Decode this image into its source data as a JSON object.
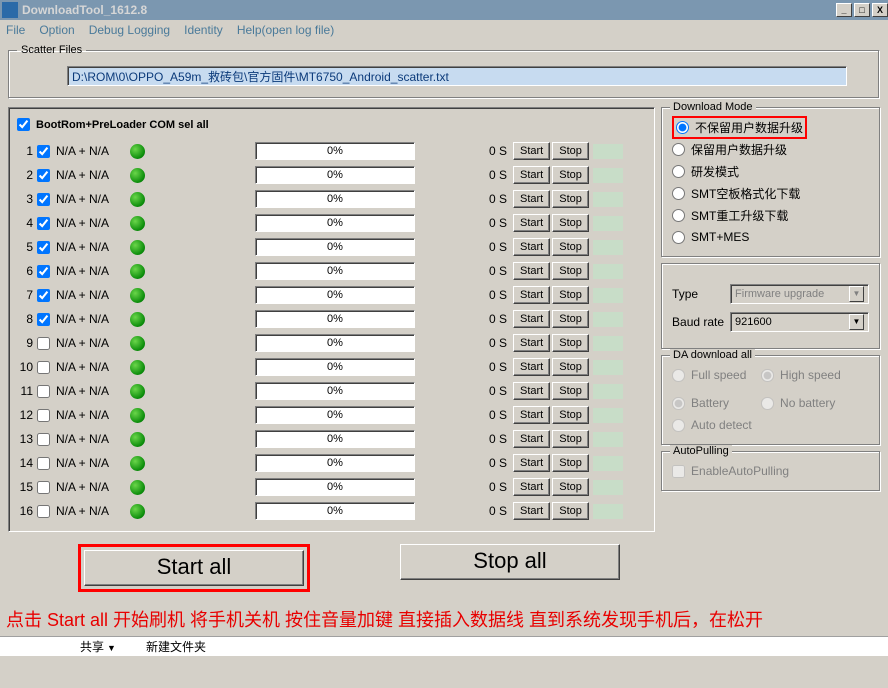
{
  "window": {
    "title": "DownloadTool_1612.8",
    "min": "_",
    "max": "□",
    "close": "X"
  },
  "menu": {
    "file": "File",
    "option": "Option",
    "debug": "Debug Logging",
    "identity": "Identity",
    "help": "Help(open log file)"
  },
  "scatter": {
    "legend": "Scatter Files",
    "path": "D:\\ROM\\0\\OPPO_A59m_救砖包\\官方固件\\MT6750_Android_scatter.txt"
  },
  "header": {
    "label": "BootRom+PreLoader COM sel all"
  },
  "rowLabels": {
    "start": "Start",
    "stop": "Stop",
    "duration": "0 S",
    "progress": "0%"
  },
  "devices": [
    {
      "n": "1",
      "checked": true,
      "label": "N/A + N/A"
    },
    {
      "n": "2",
      "checked": true,
      "label": "N/A + N/A"
    },
    {
      "n": "3",
      "checked": true,
      "label": "N/A + N/A"
    },
    {
      "n": "4",
      "checked": true,
      "label": "N/A + N/A"
    },
    {
      "n": "5",
      "checked": true,
      "label": "N/A + N/A"
    },
    {
      "n": "6",
      "checked": true,
      "label": "N/A + N/A"
    },
    {
      "n": "7",
      "checked": true,
      "label": "N/A + N/A"
    },
    {
      "n": "8",
      "checked": true,
      "label": "N/A + N/A"
    },
    {
      "n": "9",
      "checked": false,
      "label": "N/A + N/A"
    },
    {
      "n": "10",
      "checked": false,
      "label": "N/A + N/A"
    },
    {
      "n": "11",
      "checked": false,
      "label": "N/A + N/A"
    },
    {
      "n": "12",
      "checked": false,
      "label": "N/A + N/A"
    },
    {
      "n": "13",
      "checked": false,
      "label": "N/A + N/A"
    },
    {
      "n": "14",
      "checked": false,
      "label": "N/A + N/A"
    },
    {
      "n": "15",
      "checked": false,
      "label": "N/A + N/A"
    },
    {
      "n": "16",
      "checked": false,
      "label": "N/A + N/A"
    }
  ],
  "downloadMode": {
    "title": "Download Mode",
    "opts": [
      "不保留用户数据升级",
      "保留用户数据升级",
      "研发模式",
      "SMT空板格式化下载",
      "SMT重工升级下载",
      "SMT+MES"
    ],
    "selected": 0
  },
  "typeSel": {
    "label": "Type",
    "value": "Firmware upgrade"
  },
  "baudSel": {
    "label": "Baud rate",
    "value": "921600"
  },
  "da": {
    "title": "DA download all",
    "fullspeed": "Full speed",
    "highspeed": "High speed",
    "battery": "Battery",
    "nobattery": "No battery",
    "autodetect": "Auto detect"
  },
  "autoPulling": {
    "title": "AutoPulling",
    "label": "EnableAutoPulling"
  },
  "big": {
    "start": "Start all",
    "stop": "Stop all"
  },
  "instruction": "点击 Start all 开始刷机 将手机关机 按住音量加键 直接插入数据线 直到系统发现手机后，在松开",
  "statusbar": {
    "share": "共享",
    "newfolder": "新建文件夹"
  },
  "colors": {
    "titlebar": "#7b97b0",
    "frame": "#d4d0c8",
    "scatterBg": "#c7dbf0",
    "scatterText": "#0b3a7a",
    "dotGreen": "#0a8b0a",
    "tailGreen": "#c8ddc8",
    "highlight": "#f00",
    "instruction": "#e80000"
  }
}
